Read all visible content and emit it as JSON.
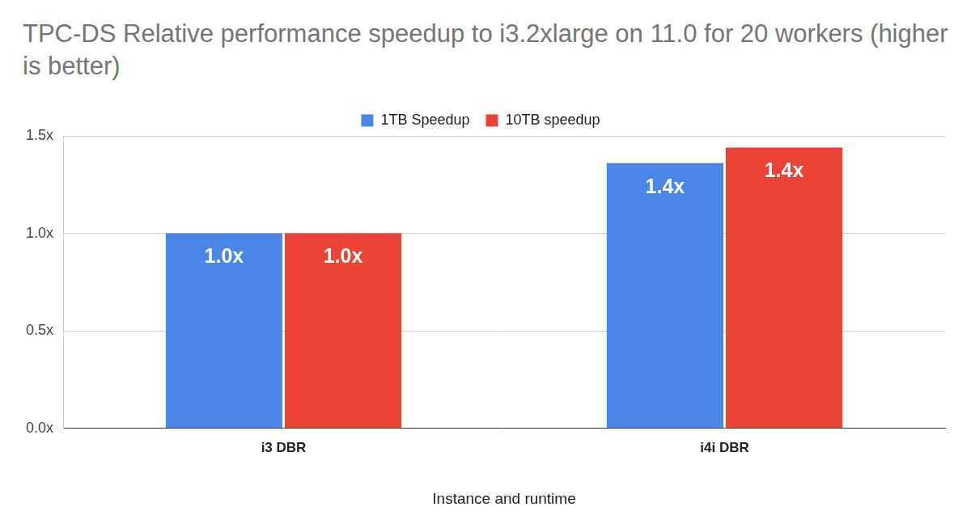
{
  "chart_data": {
    "type": "bar",
    "title": "TPC-DS Relative performance speedup to i3.2xlarge on 11.0 for 20 workers (higher is better)",
    "x_label": "Instance and runtime",
    "categories": [
      "i3 DBR",
      "i4i DBR"
    ],
    "series": [
      {
        "name": "1TB Speedup",
        "color": "#4a86e8",
        "values": [
          1.0,
          1.36
        ],
        "value_labels": [
          "1.0x",
          "1.4x"
        ]
      },
      {
        "name": "10TB speedup",
        "color": "#ea4335",
        "values": [
          1.0,
          1.44
        ],
        "value_labels": [
          "1.0x",
          "1.4x"
        ]
      }
    ],
    "ylim": [
      0,
      1.5
    ],
    "yticks": [
      {
        "value": 0,
        "label": "0.0x"
      },
      {
        "value": 0.5,
        "label": "0.5x"
      },
      {
        "value": 1.0,
        "label": "1.0x"
      },
      {
        "value": 1.5,
        "label": "1.5x"
      }
    ],
    "grid": true,
    "legend": "top",
    "data_labels": true
  }
}
